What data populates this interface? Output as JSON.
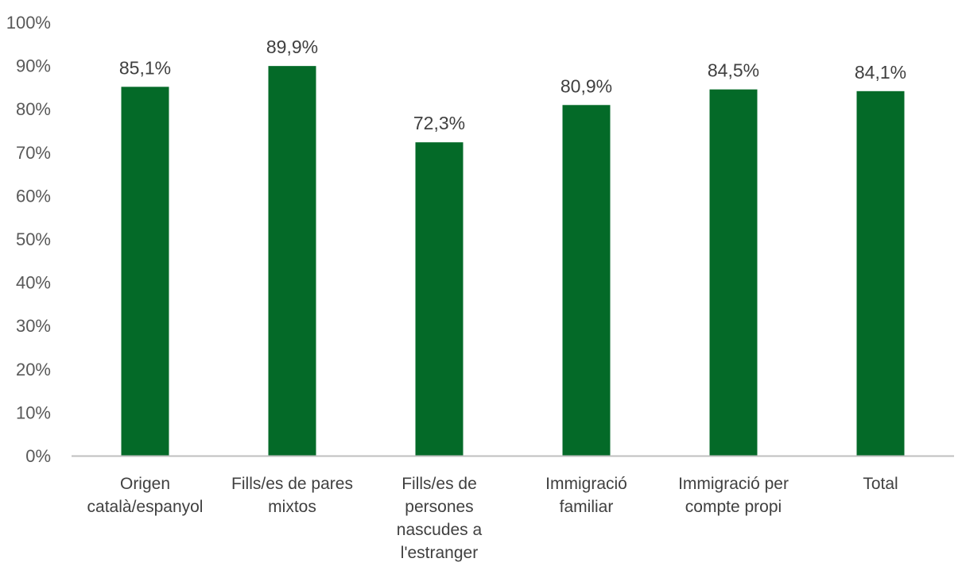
{
  "chart_data": {
    "type": "bar",
    "categories": [
      [
        "Origen",
        "català/espanyol"
      ],
      [
        "Fills/es de pares",
        "mixtos"
      ],
      [
        "Fills/es de",
        "persones",
        "nascudes a",
        "l'estranger"
      ],
      [
        "Immigració",
        "familiar"
      ],
      [
        "Immigració per",
        "compte propi"
      ],
      [
        "Total"
      ]
    ],
    "values": [
      85.1,
      89.9,
      72.3,
      80.9,
      84.5,
      84.1
    ],
    "data_labels": [
      "85,1%",
      "89,9%",
      "72,3%",
      "80,9%",
      "84,5%",
      "84,1%"
    ],
    "ylim": [
      0,
      100
    ],
    "yticks": [
      0,
      10,
      20,
      30,
      40,
      50,
      60,
      70,
      80,
      90,
      100
    ],
    "ytick_labels": [
      "0%",
      "10%",
      "20%",
      "30%",
      "40%",
      "50%",
      "60%",
      "70%",
      "80%",
      "90%",
      "100%"
    ],
    "bar_color": "#046a28",
    "axis_color": "#bfbfbf",
    "grid": false,
    "title": "",
    "xlabel": "",
    "ylabel": ""
  }
}
